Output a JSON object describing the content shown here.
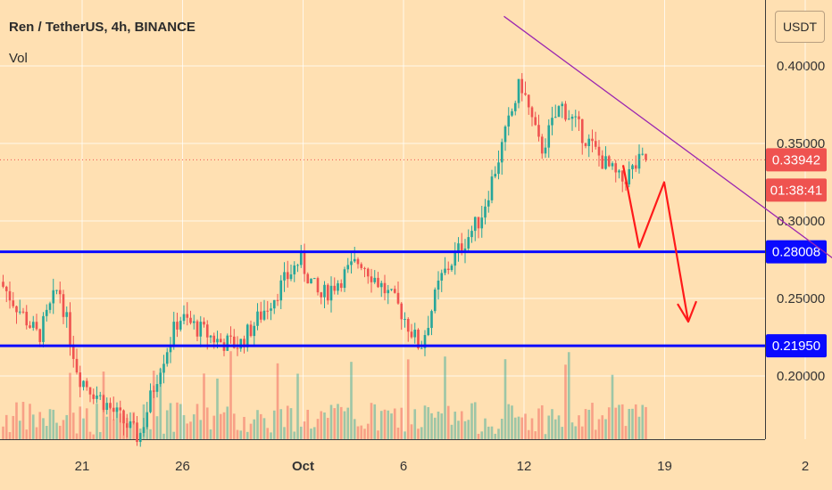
{
  "header": {
    "title": "Ren / TetherUS, 4h, BINANCE",
    "volume_label": "Vol",
    "currency_button": "USDT"
  },
  "badges": {
    "last_price": "0.33942",
    "countdown": "01:38:41",
    "upper_line": "0.28008",
    "lower_line": "0.21950"
  },
  "colors": {
    "background": "#ffe0b2",
    "up": "#26a69a",
    "down": "#ef5350",
    "level_lines": "#0a0aff",
    "trendline": "#9c27b0",
    "projection": "#ff1a1a"
  },
  "chart_data": {
    "type": "candlestick",
    "pair": "Ren / TetherUS",
    "interval": "4h",
    "exchange": "BINANCE",
    "x_tick_labels": [
      "21",
      "26",
      "Oct",
      "6",
      "12",
      "19",
      "2"
    ],
    "y_tick_labels": [
      "0.40000",
      "0.35000",
      "0.30000",
      "0.25000",
      "0.20000"
    ],
    "ylim": [
      0.17,
      0.43
    ],
    "horizontal_levels": [
      0.28008,
      0.2195
    ],
    "last_price": 0.33942,
    "trendline": {
      "from": [
        "Oct 11",
        0.432
      ],
      "to": [
        "Oct 28",
        0.27
      ]
    },
    "projection_path": [
      0.336,
      0.283,
      0.325,
      0.235
    ],
    "series_anchors": [
      {
        "date": "Sep 17",
        "price": 0.262
      },
      {
        "date": "Sep 19",
        "price": 0.225
      },
      {
        "date": "Sep 20",
        "price": 0.258
      },
      {
        "date": "Sep 21",
        "price": 0.2
      },
      {
        "date": "Sep 24",
        "price": 0.16
      },
      {
        "date": "Sep 25",
        "price": 0.205
      },
      {
        "date": "Sep 26",
        "price": 0.238
      },
      {
        "date": "Sep 28",
        "price": 0.222
      },
      {
        "date": "Sep 29",
        "price": 0.22
      },
      {
        "date": "Oct 1",
        "price": 0.275
      },
      {
        "date": "Oct 2",
        "price": 0.25
      },
      {
        "date": "Oct 4",
        "price": 0.275
      },
      {
        "date": "Oct 6",
        "price": 0.243
      },
      {
        "date": "Oct 7",
        "price": 0.218
      },
      {
        "date": "Oct 8",
        "price": 0.262
      },
      {
        "date": "Oct 9",
        "price": 0.283
      },
      {
        "date": "Oct 10",
        "price": 0.302
      },
      {
        "date": "Oct 11",
        "price": 0.345
      },
      {
        "date": "Oct 12",
        "price": 0.39
      },
      {
        "date": "Oct 13",
        "price": 0.345
      },
      {
        "date": "Oct 14",
        "price": 0.375
      },
      {
        "date": "Oct 16",
        "price": 0.34
      },
      {
        "date": "Oct 17",
        "price": 0.325
      },
      {
        "date": "Oct 18",
        "price": 0.339
      }
    ]
  }
}
